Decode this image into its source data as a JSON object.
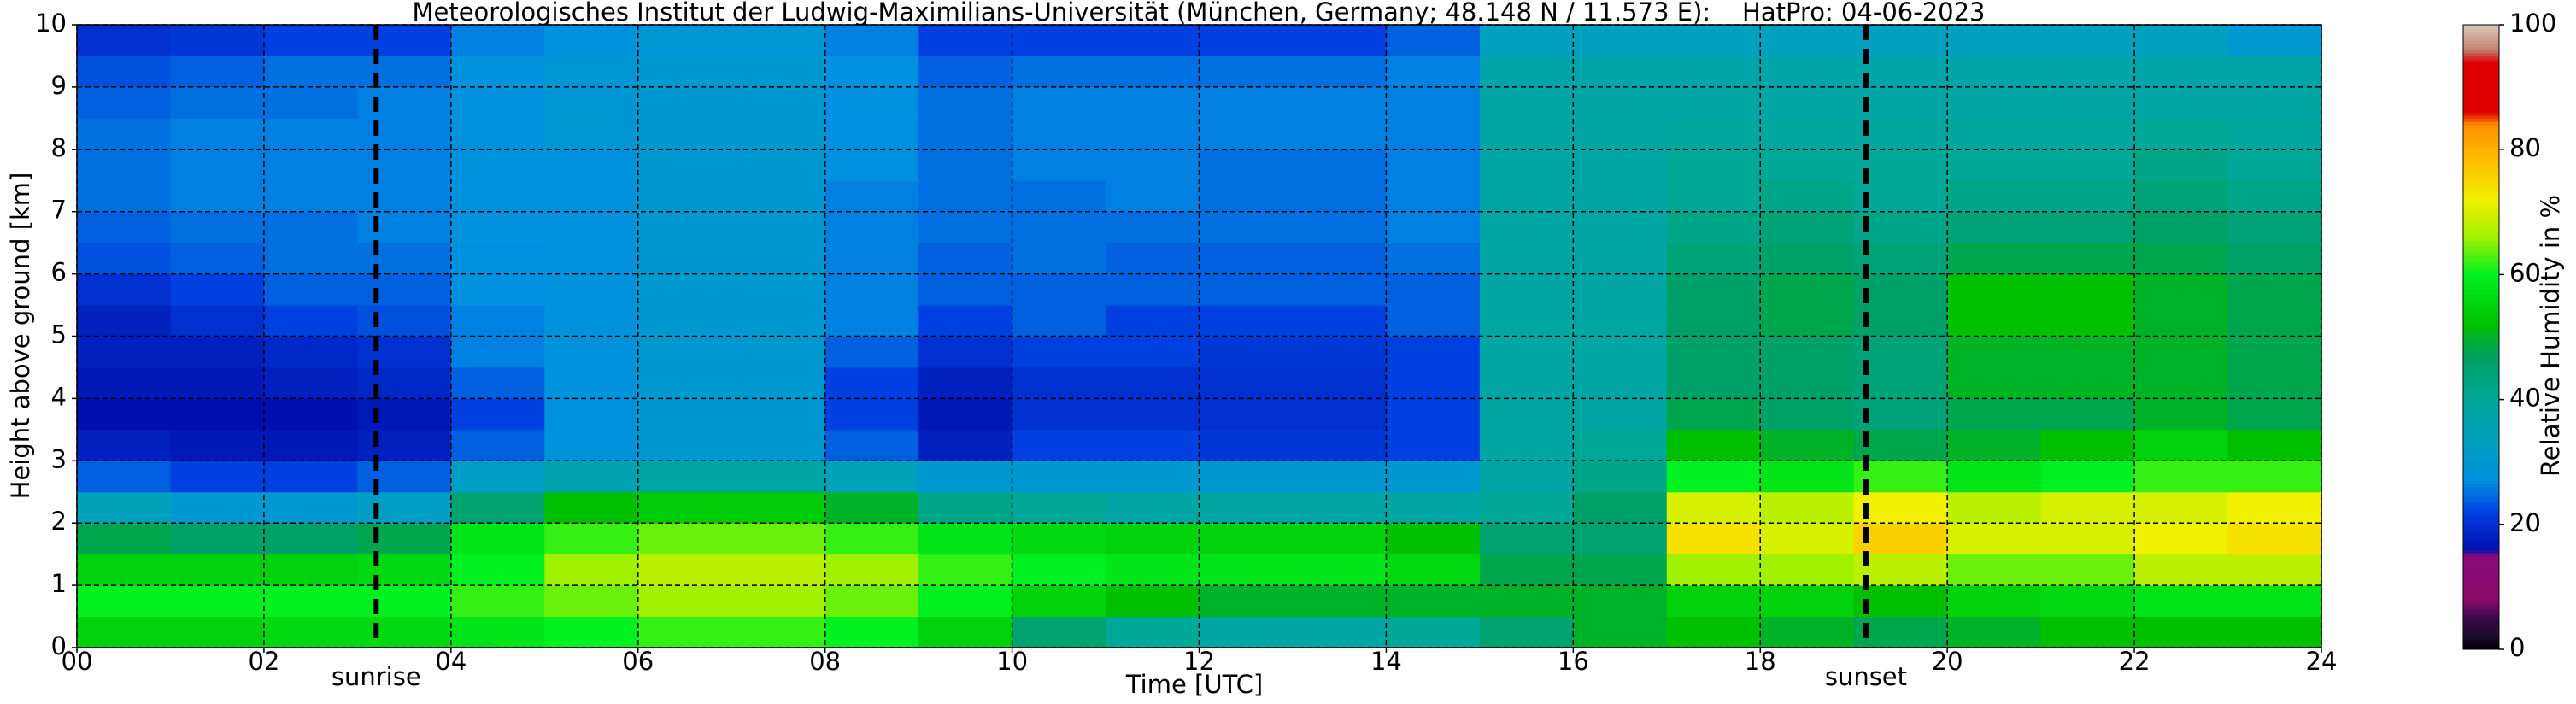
{
  "chart_data": {
    "type": "heatmap",
    "title": "Meteorologisches Institut der Ludwig-Maximilians-Universität (München, Germany; 48.148 N / 11.573 E):    HatPro: 04-06-2023",
    "x_label": "Time [UTC]",
    "y_label": "Height above ground [km]",
    "colorbar_label": "Relative Humidity in %",
    "x": [
      0.5,
      1.5,
      2.5,
      3.5,
      4.5,
      5.5,
      6.5,
      7.5,
      8.5,
      9.5,
      10.5,
      11.5,
      12.5,
      13.5,
      14.5,
      15.5,
      16.5,
      17.5,
      18.5,
      19.5,
      20.5,
      21.5,
      22.5,
      23.5
    ],
    "y": [
      0.25,
      0.75,
      1.25,
      1.75,
      2.25,
      2.75,
      3.25,
      3.75,
      4.25,
      4.75,
      5.25,
      5.75,
      6.25,
      6.75,
      7.25,
      7.75,
      8.25,
      8.75,
      9.25,
      9.75
    ],
    "values": [
      [
        55,
        55,
        56,
        56,
        58,
        60,
        62,
        62,
        60,
        55,
        45,
        40,
        38,
        38,
        40,
        45,
        50,
        52,
        50,
        48,
        50,
        52,
        52,
        52
      ],
      [
        60,
        60,
        60,
        60,
        62,
        64,
        66,
        66,
        64,
        60,
        55,
        52,
        50,
        50,
        50,
        50,
        50,
        55,
        55,
        52,
        55,
        56,
        58,
        58
      ],
      [
        55,
        55,
        55,
        56,
        60,
        66,
        68,
        68,
        66,
        62,
        60,
        58,
        58,
        58,
        56,
        48,
        48,
        66,
        66,
        68,
        64,
        64,
        68,
        68
      ],
      [
        48,
        46,
        46,
        48,
        58,
        62,
        64,
        64,
        62,
        58,
        56,
        55,
        55,
        55,
        52,
        45,
        45,
        74,
        70,
        76,
        70,
        70,
        72,
        74
      ],
      [
        34,
        30,
        30,
        32,
        45,
        52,
        54,
        54,
        50,
        42,
        40,
        38,
        38,
        38,
        38,
        40,
        46,
        70,
        68,
        72,
        68,
        70,
        70,
        72
      ],
      [
        24,
        22,
        22,
        24,
        32,
        36,
        38,
        38,
        34,
        30,
        30,
        30,
        30,
        30,
        30,
        38,
        42,
        60,
        58,
        62,
        58,
        60,
        62,
        62
      ],
      [
        18,
        17,
        17,
        18,
        24,
        28,
        30,
        30,
        24,
        18,
        22,
        22,
        21,
        21,
        22,
        38,
        40,
        52,
        50,
        48,
        50,
        52,
        55,
        52
      ],
      [
        16,
        16,
        16,
        17,
        22,
        28,
        30,
        30,
        22,
        17,
        20,
        20,
        20,
        20,
        22,
        38,
        38,
        48,
        46,
        44,
        48,
        48,
        50,
        48
      ],
      [
        17,
        17,
        18,
        19,
        24,
        28,
        30,
        30,
        22,
        18,
        20,
        20,
        20,
        20,
        22,
        38,
        38,
        46,
        46,
        44,
        50,
        50,
        50,
        48
      ],
      [
        18,
        18,
        19,
        20,
        26,
        28,
        30,
        30,
        24,
        20,
        22,
        22,
        21,
        21,
        22,
        38,
        38,
        46,
        46,
        44,
        50,
        50,
        50,
        48
      ],
      [
        18,
        20,
        22,
        23,
        26,
        28,
        30,
        30,
        26,
        22,
        24,
        22,
        22,
        22,
        24,
        38,
        38,
        46,
        48,
        46,
        52,
        52,
        50,
        48
      ],
      [
        20,
        22,
        24,
        24,
        27,
        28,
        30,
        30,
        26,
        24,
        24,
        24,
        24,
        24,
        24,
        38,
        38,
        46,
        48,
        46,
        52,
        52,
        50,
        48
      ],
      [
        23,
        24,
        25,
        25,
        27,
        28,
        30,
        30,
        26,
        24,
        25,
        24,
        24,
        24,
        25,
        38,
        38,
        44,
        46,
        44,
        48,
        48,
        48,
        46
      ],
      [
        24,
        25,
        25,
        26,
        28,
        28,
        30,
        30,
        26,
        25,
        25,
        25,
        25,
        25,
        26,
        38,
        38,
        42,
        44,
        42,
        44,
        44,
        46,
        44
      ],
      [
        25,
        26,
        26,
        26,
        28,
        28,
        30,
        30,
        26,
        25,
        25,
        26,
        25,
        25,
        26,
        38,
        38,
        40,
        42,
        40,
        42,
        42,
        44,
        42
      ],
      [
        25,
        26,
        26,
        26,
        28,
        28,
        30,
        30,
        27,
        25,
        26,
        26,
        25,
        25,
        26,
        38,
        38,
        40,
        40,
        40,
        40,
        40,
        42,
        40
      ],
      [
        25,
        26,
        26,
        26,
        28,
        29,
        30,
        30,
        27,
        25,
        26,
        26,
        26,
        26,
        26,
        38,
        38,
        39,
        39,
        39,
        39,
        39,
        40,
        39
      ],
      [
        24,
        25,
        25,
        26,
        28,
        29,
        30,
        30,
        27,
        25,
        26,
        26,
        26,
        26,
        26,
        38,
        38,
        38,
        38,
        38,
        38,
        38,
        38,
        38
      ],
      [
        23,
        24,
        25,
        25,
        28,
        29,
        30,
        30,
        27,
        24,
        25,
        25,
        25,
        25,
        26,
        37,
        37,
        37,
        37,
        37,
        37,
        37,
        37,
        37
      ],
      [
        20,
        21,
        22,
        22,
        26,
        28,
        29,
        29,
        26,
        22,
        22,
        22,
        22,
        22,
        24,
        33,
        33,
        33,
        33,
        33,
        33,
        33,
        33,
        30
      ]
    ],
    "xlim": [
      0,
      24
    ],
    "xticks": [
      {
        "value": 0,
        "label": "00"
      },
      {
        "value": 2,
        "label": "02"
      },
      {
        "value": 4,
        "label": "04"
      },
      {
        "value": 6,
        "label": "06"
      },
      {
        "value": 8,
        "label": "08"
      },
      10,
      12,
      14,
      16,
      18,
      20,
      22,
      24
    ],
    "ylim": [
      0,
      10
    ],
    "yticks": [
      0,
      1,
      2,
      3,
      4,
      5,
      6,
      7,
      8,
      9,
      10
    ],
    "clim": [
      0,
      100
    ],
    "cticks": [
      0,
      20,
      40,
      60,
      80,
      100
    ],
    "colorscale": [
      [
        0,
        "#000000"
      ],
      [
        2,
        "#1a0a2a"
      ],
      [
        5,
        "#3a0a4a"
      ],
      [
        8,
        "#8a0a6a"
      ],
      [
        15,
        "#8a0a7a"
      ],
      [
        16,
        "#0010b0"
      ],
      [
        22,
        "#0040e0"
      ],
      [
        27,
        "#0090e0"
      ],
      [
        33,
        "#00a0c0"
      ],
      [
        40,
        "#00a898"
      ],
      [
        47,
        "#00a060"
      ],
      [
        52,
        "#00c000"
      ],
      [
        60,
        "#00f020"
      ],
      [
        66,
        "#a0f000"
      ],
      [
        72,
        "#f0f000"
      ],
      [
        78,
        "#ffc000"
      ],
      [
        84,
        "#ff9000"
      ],
      [
        86,
        "#e00000"
      ],
      [
        94,
        "#e00000"
      ],
      [
        96,
        "#c08070"
      ],
      [
        100,
        "#d8c8b8"
      ]
    ],
    "grid": true,
    "annotations": [
      {
        "text": "sunrise",
        "x": 3.2
      },
      {
        "text": "sunset",
        "x": 19.13
      }
    ]
  }
}
